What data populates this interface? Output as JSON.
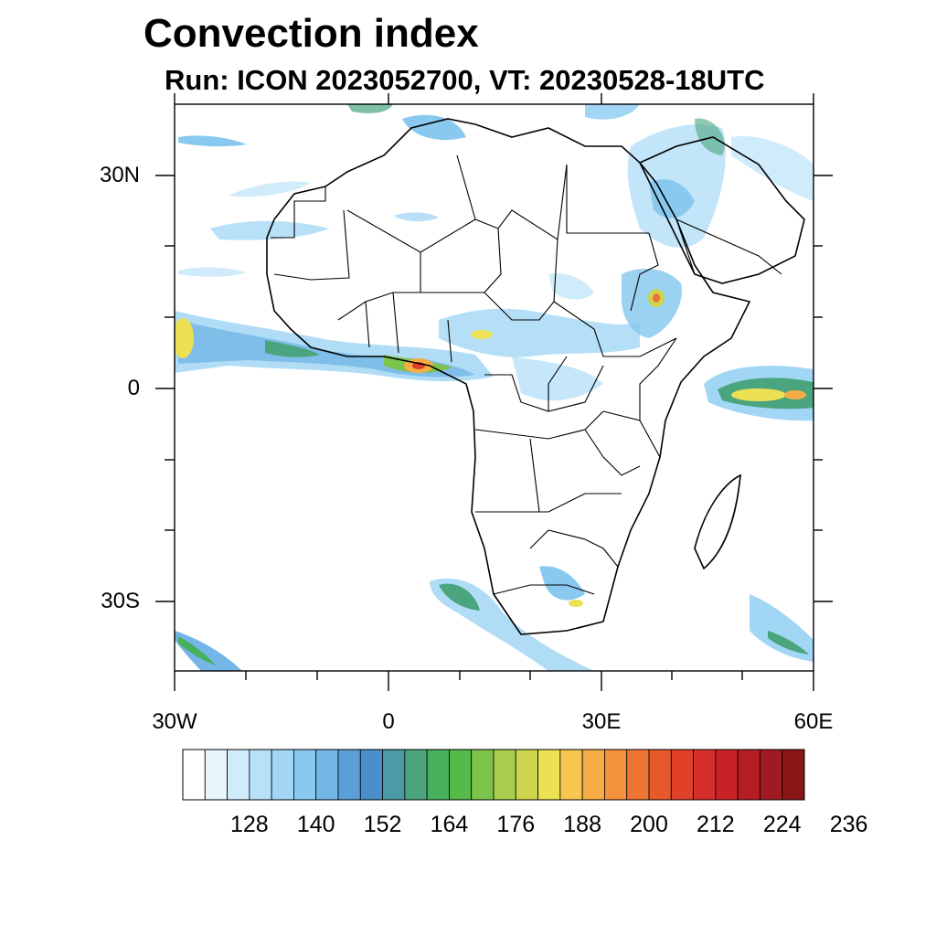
{
  "title": "Convection index",
  "subtitle": "Run: ICON 2023052700,  VT: 20230528-18UTC",
  "map": {
    "lat_labels": [
      "30N",
      "0",
      "30S"
    ],
    "lon_labels": [
      "30W",
      "0",
      "30E",
      "60E"
    ],
    "lon_range": [
      -30,
      60
    ],
    "lat_range": [
      -40,
      40
    ]
  },
  "colorbar": {
    "labels": [
      "128",
      "140",
      "152",
      "164",
      "176",
      "188",
      "200",
      "212",
      "224",
      "236"
    ],
    "colors": [
      "#ffffff",
      "#e9f5fd",
      "#d0ebfa",
      "#b8e1f8",
      "#a2d6f5",
      "#8ac9ef",
      "#74b6e7",
      "#5b9fd8",
      "#4a8fc9",
      "#4b9aa5",
      "#4aa57f",
      "#46b05d",
      "#54ba4a",
      "#7cc44b",
      "#a8cc4c",
      "#cdd44d",
      "#ece055",
      "#f7c650",
      "#f6ad45",
      "#f3913c",
      "#ee7432",
      "#e7592b",
      "#e03f28",
      "#d62e2b",
      "#c82227",
      "#b51c24",
      "#a21a21",
      "#8b1616"
    ]
  }
}
